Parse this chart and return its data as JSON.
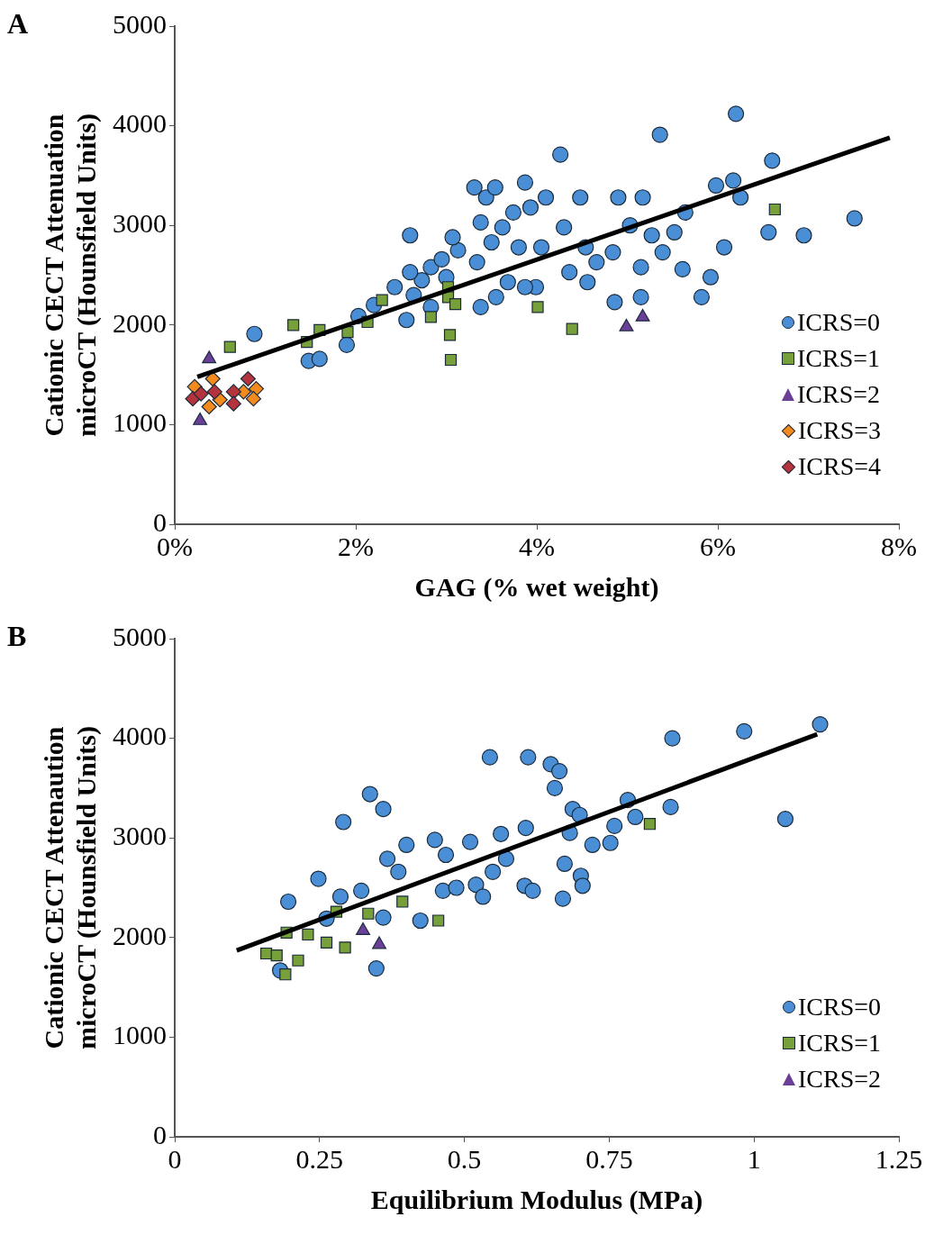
{
  "chart_data": [
    {
      "type": "scatter",
      "title": "A",
      "xlabel": "GAG (% wet weight)",
      "ylabel": "Cationic CECT Attenuation\nmicroCT (Hounsfield Units)",
      "xlim": [
        0,
        8
      ],
      "xticks": [
        {
          "value": 0,
          "label": "0%"
        },
        {
          "value": 2,
          "label": "2%"
        },
        {
          "value": 4,
          "label": "4%"
        },
        {
          "value": 6,
          "label": "6%"
        },
        {
          "value": 8,
          "label": "8%"
        }
      ],
      "ylim": [
        0,
        5000
      ],
      "yticks": [
        0,
        1000,
        2000,
        3000,
        4000,
        5000
      ],
      "grid": false,
      "legend": "bottom right",
      "series": [
        {
          "name": "ICRS=0",
          "color": "#4a8fd6",
          "marker": "circle",
          "x": [
            0.88,
            1.48,
            1.6,
            1.9,
            2.03,
            2.2,
            2.43,
            2.56,
            2.64,
            2.73,
            2.83,
            2.6,
            2.95,
            3.0,
            3.13,
            3.07,
            2.6,
            3.31,
            3.38,
            3.44,
            3.54,
            3.34,
            3.5,
            3.62,
            3.74,
            3.87,
            3.93,
            3.8,
            4.05,
            3.99,
            3.87,
            3.68,
            3.55,
            4.1,
            4.26,
            4.3,
            4.48,
            4.54,
            4.36,
            4.56,
            4.66,
            4.9,
            5.03,
            5.17,
            5.36,
            5.27,
            5.15,
            5.39,
            5.52,
            5.64,
            5.61,
            5.82,
            5.92,
            5.98,
            6.17,
            6.2,
            6.25,
            6.07,
            6.56,
            6.6,
            6.95,
            7.51,
            4.86,
            5.15,
            4.84,
            3.38,
            2.83
          ],
          "values": [
            1910,
            1640,
            1660,
            1800,
            2090,
            2200,
            2380,
            2050,
            2300,
            2450,
            2580,
            2530,
            2660,
            2480,
            2750,
            2880,
            2900,
            3380,
            3030,
            3280,
            3380,
            2630,
            2830,
            2980,
            3130,
            3430,
            3180,
            2780,
            2780,
            2380,
            2380,
            2430,
            2280,
            3280,
            3710,
            2980,
            3280,
            2780,
            2530,
            2430,
            2630,
            3280,
            3000,
            3280,
            3910,
            2900,
            2580,
            2730,
            2930,
            3130,
            2560,
            2280,
            2480,
            3400,
            3450,
            4120,
            3280,
            2780,
            2930,
            3650,
            2900,
            3070,
            2230,
            2280,
            2730,
            2180,
            2180
          ]
        },
        {
          "name": "ICRS=1",
          "color": "#77a03a",
          "marker": "square",
          "x": [
            0.61,
            1.31,
            1.6,
            1.46,
            1.91,
            2.13,
            2.29,
            2.83,
            3.02,
            3.02,
            3.1,
            3.04,
            3.05,
            4.01,
            4.39,
            6.63
          ],
          "values": [
            1780,
            2000,
            1950,
            1830,
            1930,
            2030,
            2250,
            2080,
            2380,
            2280,
            2210,
            1900,
            1650,
            2180,
            1960,
            3160
          ]
        },
        {
          "name": "ICRS=2",
          "color": "#6a3f98",
          "marker": "triangle",
          "x": [
            0.38,
            0.28,
            4.99,
            5.17
          ],
          "values": [
            1660,
            1040,
            1980,
            2080
          ]
        },
        {
          "name": "ICRS=3",
          "color": "#f28a1e",
          "marker": "diamond",
          "x": [
            0.22,
            0.42,
            0.38,
            0.5,
            0.76,
            0.9,
            0.87
          ],
          "values": [
            1380,
            1460,
            1180,
            1250,
            1330,
            1360,
            1260
          ]
        },
        {
          "name": "ICRS=4",
          "color": "#b5333d",
          "marker": "diamond",
          "x": [
            0.2,
            0.44,
            0.65,
            0.81,
            0.65,
            0.29
          ],
          "values": [
            1260,
            1330,
            1330,
            1460,
            1210,
            1310
          ]
        },
        {
          "type": "line",
          "color": "#000000",
          "marker": "none",
          "x": [
            0.25,
            7.9
          ],
          "values": [
            1480,
            3880
          ]
        }
      ]
    },
    {
      "type": "scatter",
      "title": "B",
      "xlabel": "Equilibrium Modulus (MPa)",
      "ylabel": "Cationic CECT Attenaution\nmicroCT (Hounsfield Units)",
      "xlim": [
        0,
        1.25
      ],
      "xticks": [
        0,
        0.25,
        0.5,
        0.75,
        1,
        1.25
      ],
      "ylim": [
        0,
        5000
      ],
      "yticks": [
        0,
        1000,
        2000,
        3000,
        4000,
        5000
      ],
      "grid": false,
      "legend": "bottom right",
      "series": [
        {
          "name": "ICRS=0",
          "color": "#4a8fd6",
          "marker": "circle",
          "x": [
            0.196,
            0.248,
            0.291,
            0.337,
            0.36,
            0.367,
            0.386,
            0.4,
            0.286,
            0.322,
            0.262,
            0.36,
            0.348,
            0.182,
            0.449,
            0.468,
            0.51,
            0.544,
            0.61,
            0.563,
            0.606,
            0.572,
            0.52,
            0.532,
            0.463,
            0.486,
            0.424,
            0.458,
            0.604,
            0.618,
            0.549,
            0.649,
            0.664,
            0.656,
            0.687,
            0.699,
            0.682,
            0.721,
            0.752,
            0.759,
            0.782,
            0.795,
            0.856,
            0.859,
            0.983,
            1.114,
            1.054,
            0.673,
            0.701,
            0.704,
            0.67
          ],
          "values": [
            2360,
            2590,
            3160,
            3440,
            3290,
            2790,
            2660,
            2930,
            2410,
            2470,
            2190,
            2200,
            1690,
            1670,
            2980,
            2830,
            2960,
            3810,
            3810,
            3040,
            3100,
            2790,
            2530,
            2410,
            2470,
            2500,
            2170,
            null,
            2520,
            2470,
            2660,
            3740,
            3670,
            3500,
            3290,
            3230,
            3050,
            2930,
            2950,
            3120,
            3380,
            3210,
            3310,
            4000,
            4070,
            4140,
            3190,
            2740,
            2620,
            2520,
            2390
          ]
        },
        {
          "name": "ICRS=1",
          "color": "#77a03a",
          "marker": "square",
          "x": [
            0.158,
            0.176,
            0.193,
            0.191,
            0.213,
            0.23,
            0.262,
            0.279,
            0.294,
            0.334,
            0.393,
            0.455,
            0.82
          ],
          "values": [
            1840,
            1820,
            2050,
            1630,
            1770,
            2030,
            1950,
            2260,
            1900,
            2240,
            2360,
            2170,
            3140
          ]
        },
        {
          "name": "ICRS=2",
          "color": "#6a3f98",
          "marker": "triangle",
          "x": [
            0.325,
            0.353
          ],
          "values": [
            2070,
            1930
          ]
        },
        {
          "type": "line",
          "color": "#000000",
          "marker": "none",
          "x": [
            0.107,
            1.109
          ],
          "values": [
            1870,
            4040
          ]
        }
      ]
    }
  ]
}
